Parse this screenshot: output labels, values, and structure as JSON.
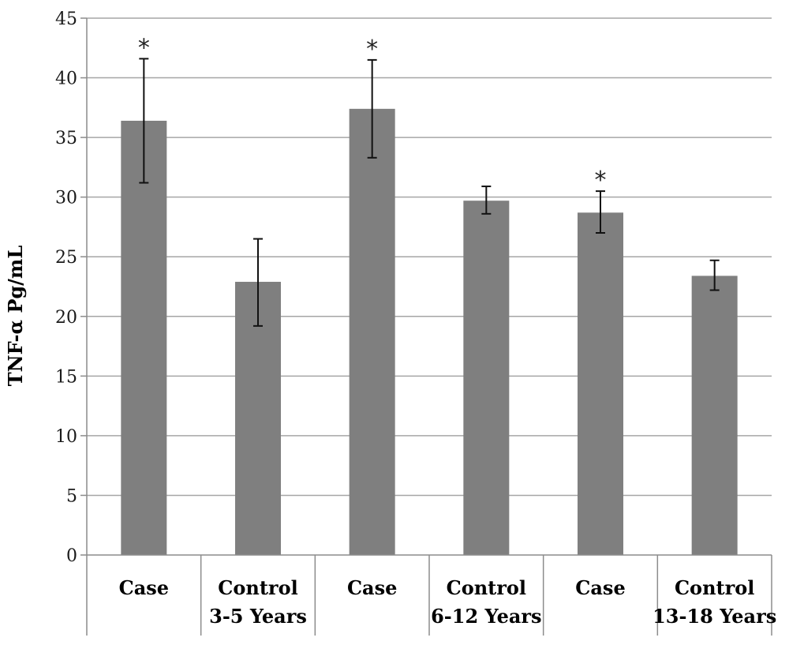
{
  "chart_data": {
    "type": "bar",
    "title": "",
    "xlabel": "",
    "ylabel": "TNF-α Pg/mL",
    "ylim": [
      0,
      45
    ],
    "yticks": [
      0,
      5,
      10,
      15,
      20,
      25,
      30,
      35,
      40,
      45
    ],
    "grid": true,
    "legend": "none",
    "bar_color": "#7f7f7f",
    "groups": [
      {
        "label": "3-5 Years",
        "categories": [
          0,
          1
        ]
      },
      {
        "label": "6-12 Years",
        "categories": [
          2,
          3
        ]
      },
      {
        "label": "13-18 Years",
        "categories": [
          4,
          5
        ]
      }
    ],
    "categories": [
      "Case",
      "Control",
      "Case",
      "Control",
      "Case",
      "Control"
    ],
    "values": [
      36.4,
      22.9,
      37.4,
      29.7,
      28.7,
      23.4
    ],
    "error_low": [
      31.2,
      19.2,
      33.3,
      28.6,
      27.0,
      22.2
    ],
    "error_high": [
      41.6,
      26.5,
      41.5,
      30.9,
      30.5,
      24.7
    ],
    "annotations": [
      "*",
      "",
      "*",
      "",
      "*",
      ""
    ]
  }
}
